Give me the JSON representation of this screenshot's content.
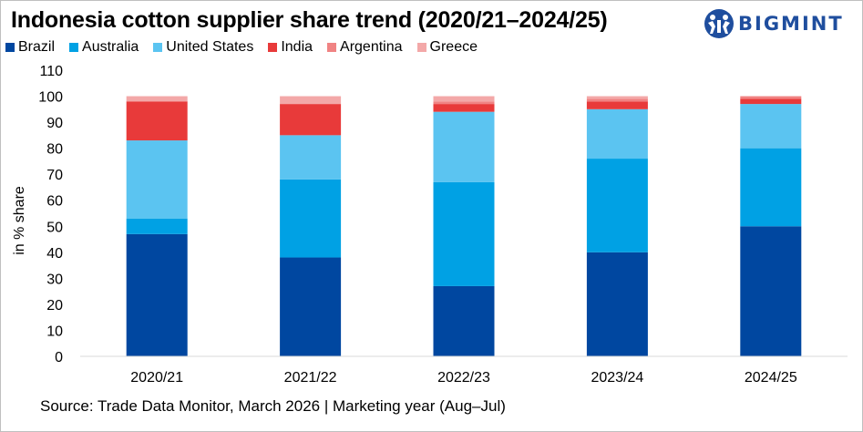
{
  "title": "Indonesia cotton supplier share trend (2020/21–2024/25)",
  "brand": {
    "name": "BIGMINT",
    "logo_icon": "bigmint-people-logo-icon",
    "color": "#1f4e9e"
  },
  "footer": "Source: Trade Data Monitor, March 2026 |  Marketing year (Aug–Jul)",
  "chart_data": {
    "type": "bar",
    "stacked": true,
    "title": "Indonesia cotton supplier share trend (2020/21–2024/25)",
    "xlabel": "",
    "ylabel": "in % share",
    "ylim": [
      0,
      110
    ],
    "yticks": [
      0,
      10,
      20,
      30,
      40,
      50,
      60,
      70,
      80,
      90,
      100,
      110
    ],
    "grid": false,
    "legend_position": "top-left",
    "categories": [
      "2020/21",
      "2021/22",
      "2022/23",
      "2023/24",
      "2024/25"
    ],
    "series": [
      {
        "name": "Brazil",
        "color": "#0047a0",
        "values": [
          47,
          38,
          27,
          40,
          50
        ]
      },
      {
        "name": "Australia",
        "color": "#00a1e4",
        "values": [
          6,
          30,
          40,
          36,
          30
        ]
      },
      {
        "name": "United States",
        "color": "#5bc4f1",
        "values": [
          30,
          17,
          27,
          19,
          17
        ]
      },
      {
        "name": "India",
        "color": "#e83a3a",
        "values": [
          15,
          12,
          3,
          3,
          2
        ]
      },
      {
        "name": "Argentina",
        "color": "#f08383",
        "values": [
          0,
          0,
          1,
          1,
          1
        ]
      },
      {
        "name": "Greece",
        "color": "#f3a8a8",
        "values": [
          2,
          3,
          2,
          1,
          0
        ]
      }
    ]
  }
}
